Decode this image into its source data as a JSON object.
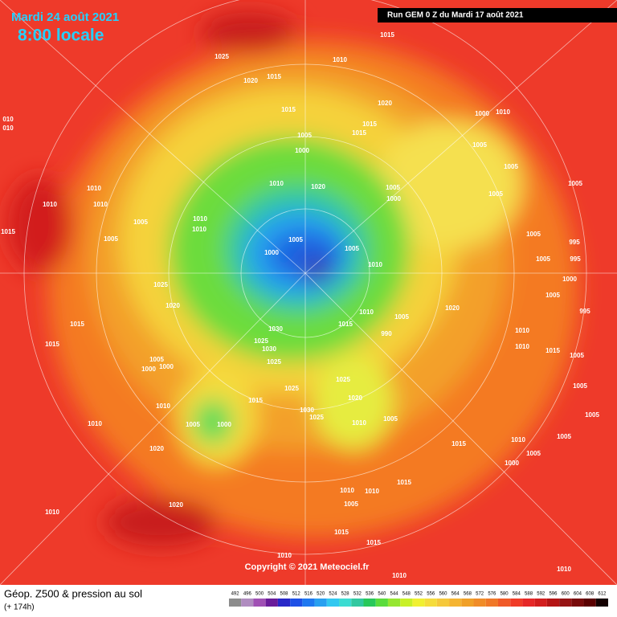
{
  "header": {
    "date": "Mardi 24 août 2021",
    "time": "8:00 locale"
  },
  "run_info": "Run GEM 0 Z du Mardi 17 août 2021",
  "copyright": "Copyright © 2021 Meteociel.fr",
  "legend": {
    "title": "Géop. Z500 & pression au sol",
    "subtitle": "(+ 174h)",
    "values": [
      492,
      496,
      500,
      504,
      508,
      512,
      516,
      520,
      524,
      528,
      532,
      536,
      540,
      544,
      548,
      552,
      556,
      560,
      564,
      568,
      572,
      576,
      580,
      584,
      588,
      592,
      596,
      600,
      604,
      608,
      612
    ],
    "colors": [
      "#8c8c8c",
      "#b08cc0",
      "#a050b4",
      "#6a1c9a",
      "#2828c8",
      "#1e50e6",
      "#1e78f0",
      "#28a0f0",
      "#32c8f0",
      "#3cdcd2",
      "#32c8a0",
      "#28c85a",
      "#5adc3c",
      "#96e632",
      "#c8f028",
      "#f0f032",
      "#f5dc3c",
      "#f5c83c",
      "#f5b432",
      "#f0a028",
      "#f08c28",
      "#f07828",
      "#f05a28",
      "#f03c28",
      "#e62828",
      "#d21e1e",
      "#b41414",
      "#961414",
      "#780a0a",
      "#5a0000",
      "#140000"
    ]
  },
  "pressure_labels": [
    "1015",
    "1025",
    "1010",
    "1020",
    "1015",
    "1020",
    "1015",
    "1000",
    "1010",
    "1015",
    "1015",
    "1005",
    "1000",
    "1005",
    "1005",
    "1005",
    "1010",
    "1020",
    "1005",
    "1000",
    "1005",
    "1010",
    "1010",
    "1010",
    "1005",
    "1010",
    "1010",
    "1015",
    "1005",
    "1005",
    "1005",
    "995",
    "1000",
    "1005",
    "995",
    "1005",
    "1010",
    "1025",
    "1000",
    "1005",
    "1020",
    "1020",
    "995",
    "1010",
    "1005",
    "1015",
    "1015",
    "1030",
    "1010",
    "990",
    "1015",
    "1025",
    "1030",
    "1010",
    "1015",
    "1005",
    "1025",
    "1005",
    "1000",
    "1000",
    "1025",
    "1005",
    "1025",
    "1015",
    "1020",
    "1010",
    "1030",
    "1025",
    "1010",
    "1005",
    "1010",
    "1005",
    "1000",
    "1005",
    "1005",
    "1020",
    "1015",
    "1010",
    "1005",
    "1000",
    "1015",
    "1010",
    "1010",
    "1020",
    "1010",
    "1005",
    "1015",
    "1015",
    "1010",
    "1010",
    "1010",
    "010",
    "010"
  ]
}
